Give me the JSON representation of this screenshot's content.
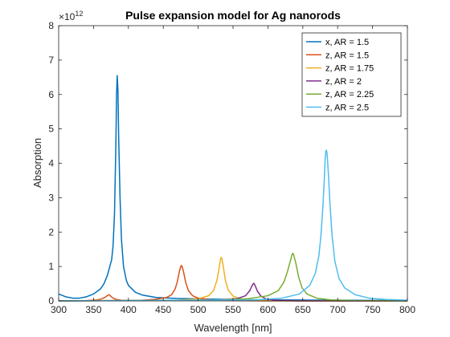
{
  "chart_data": {
    "type": "line",
    "title": "Pulse expansion model for Ag nanorods",
    "xlabel": "Wavelength [nm]",
    "ylabel": "Absorption",
    "y_multiplier_base": "×10",
    "y_multiplier_exp": "12",
    "xlim": [
      300,
      800
    ],
    "ylim": [
      0,
      8
    ],
    "x_ticks": [
      "300",
      "350",
      "400",
      "450",
      "500",
      "550",
      "600",
      "650",
      "700",
      "750",
      "800"
    ],
    "y_ticks": [
      "0",
      "1",
      "2",
      "3",
      "4",
      "5",
      "6",
      "7",
      "8"
    ],
    "legend_position": "top-right",
    "series": [
      {
        "name": "x, AR = 1.5",
        "color": "#0072BD",
        "points": [
          [
            300,
            0.2
          ],
          [
            310,
            0.12
          ],
          [
            320,
            0.08
          ],
          [
            330,
            0.08
          ],
          [
            340,
            0.12
          ],
          [
            350,
            0.2
          ],
          [
            360,
            0.35
          ],
          [
            365,
            0.5
          ],
          [
            370,
            0.75
          ],
          [
            374,
            1.05
          ],
          [
            376,
            1.2
          ],
          [
            378,
            1.6
          ],
          [
            380,
            2.5
          ],
          [
            382,
            4.5
          ],
          [
            383,
            6.0
          ],
          [
            384,
            6.55
          ],
          [
            385,
            6.1
          ],
          [
            386,
            4.8
          ],
          [
            388,
            3.0
          ],
          [
            390,
            1.8
          ],
          [
            393,
            1.0
          ],
          [
            397,
            0.6
          ],
          [
            400,
            0.45
          ],
          [
            410,
            0.25
          ],
          [
            420,
            0.17
          ],
          [
            440,
            0.1
          ],
          [
            470,
            0.07
          ],
          [
            500,
            0.06
          ],
          [
            550,
            0.04
          ],
          [
            600,
            0.03
          ],
          [
            650,
            0.025
          ],
          [
            700,
            0.02
          ],
          [
            750,
            0.015
          ],
          [
            800,
            0.015
          ]
        ]
      },
      {
        "name": "z, AR = 1.5",
        "color": "#D95319",
        "points": [
          [
            300,
            0.0
          ],
          [
            340,
            0.01
          ],
          [
            355,
            0.03
          ],
          [
            362,
            0.06
          ],
          [
            366,
            0.1
          ],
          [
            369,
            0.14
          ],
          [
            371,
            0.17
          ],
          [
            372,
            0.18
          ],
          [
            373,
            0.17
          ],
          [
            375,
            0.13
          ],
          [
            378,
            0.08
          ],
          [
            383,
            0.04
          ],
          [
            390,
            0.02
          ],
          [
            400,
            0.01
          ],
          [
            420,
            0.02
          ],
          [
            440,
            0.05
          ],
          [
            455,
            0.1
          ],
          [
            462,
            0.18
          ],
          [
            467,
            0.35
          ],
          [
            470,
            0.55
          ],
          [
            473,
            0.85
          ],
          [
            475,
            1.0
          ],
          [
            476,
            1.03
          ],
          [
            477,
            1.0
          ],
          [
            479,
            0.85
          ],
          [
            482,
            0.55
          ],
          [
            486,
            0.3
          ],
          [
            492,
            0.15
          ],
          [
            500,
            0.08
          ],
          [
            520,
            0.03
          ],
          [
            550,
            0.01
          ],
          [
            600,
            0.0
          ],
          [
            800,
            0.0
          ]
        ]
      },
      {
        "name": "z, AR = 1.75",
        "color": "#EDB120",
        "points": [
          [
            300,
            0.0
          ],
          [
            470,
            0.02
          ],
          [
            500,
            0.06
          ],
          [
            515,
            0.15
          ],
          [
            522,
            0.3
          ],
          [
            527,
            0.6
          ],
          [
            530,
            0.95
          ],
          [
            532,
            1.2
          ],
          [
            533,
            1.27
          ],
          [
            534,
            1.22
          ],
          [
            536,
            1.0
          ],
          [
            539,
            0.6
          ],
          [
            543,
            0.32
          ],
          [
            550,
            0.14
          ],
          [
            560,
            0.06
          ],
          [
            580,
            0.02
          ],
          [
            620,
            0.0
          ],
          [
            800,
            0.0
          ]
        ]
      },
      {
        "name": "z, AR = 2",
        "color": "#7E2F8E",
        "points": [
          [
            300,
            0.0
          ],
          [
            520,
            0.02
          ],
          [
            555,
            0.06
          ],
          [
            568,
            0.15
          ],
          [
            574,
            0.3
          ],
          [
            577,
            0.43
          ],
          [
            579,
            0.5
          ],
          [
            580,
            0.51
          ],
          [
            582,
            0.43
          ],
          [
            585,
            0.28
          ],
          [
            590,
            0.14
          ],
          [
            597,
            0.06
          ],
          [
            610,
            0.02
          ],
          [
            640,
            0.0
          ],
          [
            800,
            0.0
          ]
        ]
      },
      {
        "name": "z, AR = 2.25",
        "color": "#77AC30",
        "points": [
          [
            300,
            0.0
          ],
          [
            520,
            0.02
          ],
          [
            570,
            0.06
          ],
          [
            600,
            0.15
          ],
          [
            615,
            0.3
          ],
          [
            623,
            0.55
          ],
          [
            628,
            0.85
          ],
          [
            632,
            1.15
          ],
          [
            634,
            1.3
          ],
          [
            635,
            1.37
          ],
          [
            636,
            1.38
          ],
          [
            637,
            1.33
          ],
          [
            640,
            1.1
          ],
          [
            644,
            0.7
          ],
          [
            649,
            0.38
          ],
          [
            656,
            0.2
          ],
          [
            670,
            0.08
          ],
          [
            690,
            0.03
          ],
          [
            720,
            0.01
          ],
          [
            800,
            0.0
          ]
        ]
      },
      {
        "name": "z, AR = 2.5",
        "color": "#4DBEEE",
        "points": [
          [
            300,
            0.0
          ],
          [
            580,
            0.03
          ],
          [
            620,
            0.08
          ],
          [
            645,
            0.2
          ],
          [
            660,
            0.45
          ],
          [
            668,
            0.8
          ],
          [
            673,
            1.3
          ],
          [
            676,
            1.9
          ],
          [
            679,
            2.8
          ],
          [
            681,
            3.6
          ],
          [
            682,
            4.1
          ],
          [
            683,
            4.35
          ],
          [
            684,
            4.38
          ],
          [
            685,
            4.25
          ],
          [
            687,
            3.6
          ],
          [
            689,
            2.8
          ],
          [
            692,
            1.9
          ],
          [
            696,
            1.15
          ],
          [
            702,
            0.65
          ],
          [
            710,
            0.38
          ],
          [
            725,
            0.18
          ],
          [
            745,
            0.08
          ],
          [
            770,
            0.04
          ],
          [
            800,
            0.02
          ]
        ]
      }
    ]
  }
}
